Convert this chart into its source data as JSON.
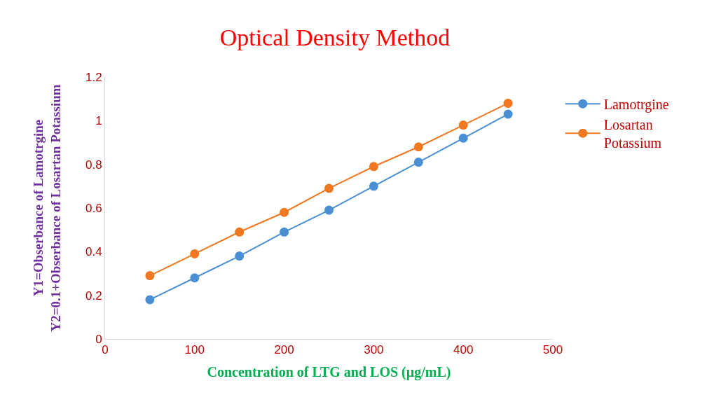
{
  "chart_data": {
    "type": "line",
    "title": "Optical Density Method",
    "xlabel": "Concentration of LTG and LOS (µg/mL)",
    "ylabel": "Y1=Obserbance of Lamotrgine\nY2=0.1+Obserbance of Losartan Potassium",
    "x": [
      50,
      100,
      150,
      200,
      250,
      300,
      350,
      400,
      450
    ],
    "series": [
      {
        "name": "Lamotrgine",
        "color": "#4a8fd4",
        "values": [
          0.18,
          0.28,
          0.38,
          0.49,
          0.59,
          0.7,
          0.81,
          0.92,
          1.03
        ]
      },
      {
        "name": "Losartan Potassium",
        "color": "#f07820",
        "values": [
          0.29,
          0.39,
          0.49,
          0.58,
          0.69,
          0.79,
          0.88,
          0.98,
          1.08
        ]
      }
    ],
    "xlim": [
      0,
      500
    ],
    "xticks": [
      0,
      100,
      200,
      300,
      400,
      500
    ],
    "ylim": [
      0,
      1.2
    ],
    "yticks": [
      0,
      0.2,
      0.4,
      0.6,
      0.8,
      1,
      1.2
    ],
    "legend": "right",
    "marker": "circle",
    "line_style": "solid"
  }
}
